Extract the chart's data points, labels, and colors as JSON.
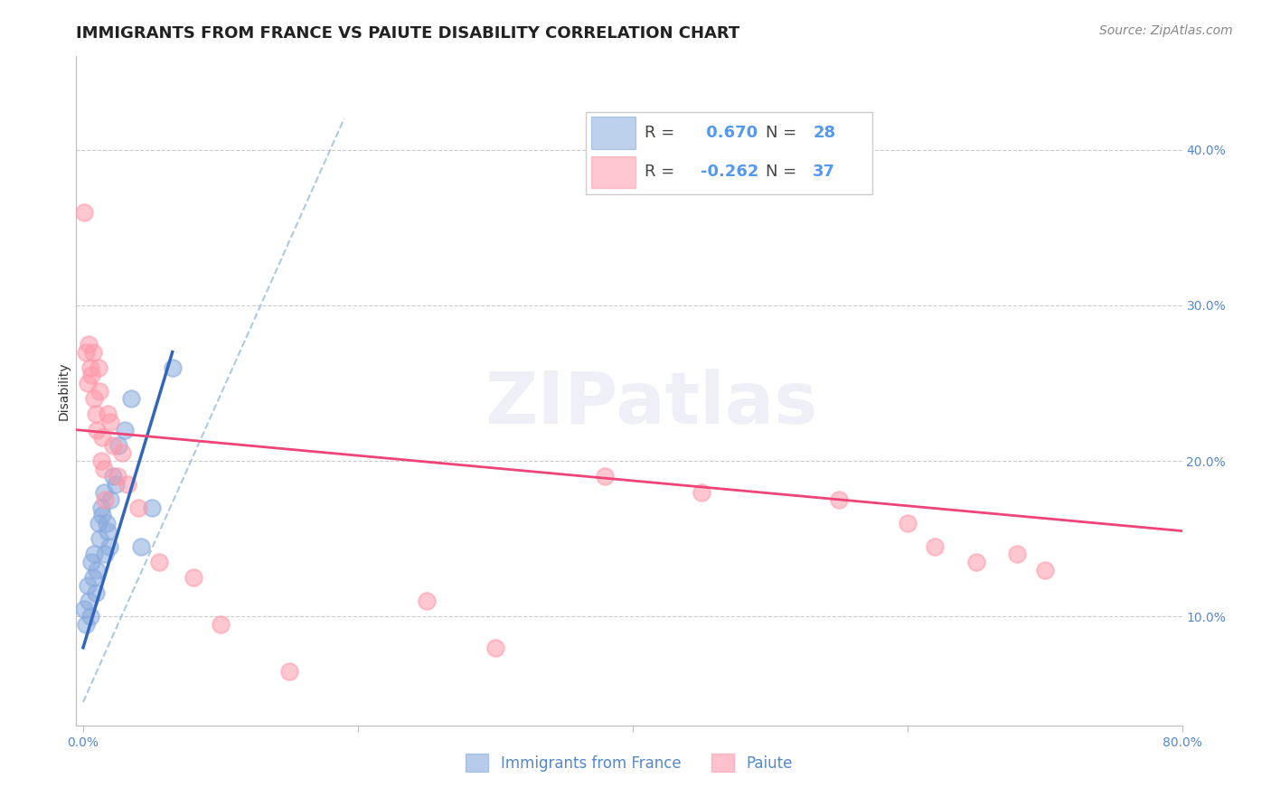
{
  "title": "IMMIGRANTS FROM FRANCE VS PAIUTE DISABILITY CORRELATION CHART",
  "source": "Source: ZipAtlas.com",
  "ylabel": "Disability",
  "x_tick_labels": [
    "0.0%",
    "",
    "",
    "",
    "80.0%"
  ],
  "x_tick_positions": [
    0.0,
    20.0,
    40.0,
    60.0,
    80.0
  ],
  "y_tick_labels": [
    "10.0%",
    "20.0%",
    "30.0%",
    "40.0%"
  ],
  "y_tick_positions": [
    10.0,
    20.0,
    30.0,
    40.0
  ],
  "xlim": [
    -0.5,
    80.0
  ],
  "ylim": [
    3.0,
    46.0
  ],
  "legend_labels": [
    "Immigrants from France",
    "Paiute"
  ],
  "blue_r": 0.67,
  "blue_n": 28,
  "pink_r": -0.262,
  "pink_n": 37,
  "blue_color": "#88AADD",
  "pink_color": "#FF99AA",
  "trend_blue_color": "#3366BB",
  "trend_pink_color": "#EE4477",
  "dashed_color": "#99BBDD",
  "watermark": "ZIPatlas",
  "blue_points_x": [
    0.1,
    0.2,
    0.3,
    0.4,
    0.5,
    0.6,
    0.7,
    0.8,
    0.9,
    1.0,
    1.1,
    1.2,
    1.3,
    1.4,
    1.5,
    1.6,
    1.7,
    1.8,
    1.9,
    2.0,
    2.2,
    2.4,
    2.6,
    3.0,
    3.5,
    4.2,
    5.0,
    6.5
  ],
  "blue_points_y": [
    10.5,
    9.5,
    12.0,
    11.0,
    10.0,
    13.5,
    12.5,
    14.0,
    11.5,
    13.0,
    16.0,
    15.0,
    17.0,
    16.5,
    18.0,
    14.0,
    16.0,
    15.5,
    14.5,
    17.5,
    19.0,
    18.5,
    21.0,
    22.0,
    24.0,
    14.5,
    17.0,
    26.0
  ],
  "pink_points_x": [
    0.1,
    0.2,
    0.3,
    0.4,
    0.5,
    0.6,
    0.7,
    0.8,
    0.9,
    1.0,
    1.1,
    1.2,
    1.3,
    1.4,
    1.5,
    1.6,
    1.8,
    2.0,
    2.2,
    2.5,
    2.8,
    3.2,
    4.0,
    5.5,
    8.0,
    10.0,
    15.0,
    25.0,
    30.0,
    38.0,
    45.0,
    55.0,
    60.0,
    62.0,
    65.0,
    68.0,
    70.0
  ],
  "pink_points_y": [
    36.0,
    27.0,
    25.0,
    27.5,
    26.0,
    25.5,
    27.0,
    24.0,
    23.0,
    22.0,
    26.0,
    24.5,
    20.0,
    21.5,
    19.5,
    17.5,
    23.0,
    22.5,
    21.0,
    19.0,
    20.5,
    18.5,
    17.0,
    13.5,
    12.5,
    9.5,
    6.5,
    11.0,
    8.0,
    19.0,
    18.0,
    17.5,
    16.0,
    14.5,
    13.5,
    14.0,
    13.0
  ],
  "blue_trend_x0": 0.0,
  "blue_trend_x1": 6.5,
  "blue_trend_y0": 8.0,
  "blue_trend_y1": 27.0,
  "pink_trend_y0": 22.0,
  "pink_trend_y1": 15.5,
  "title_fontsize": 13,
  "axis_label_fontsize": 10,
  "tick_fontsize": 10,
  "legend_fontsize": 12,
  "source_fontsize": 10
}
